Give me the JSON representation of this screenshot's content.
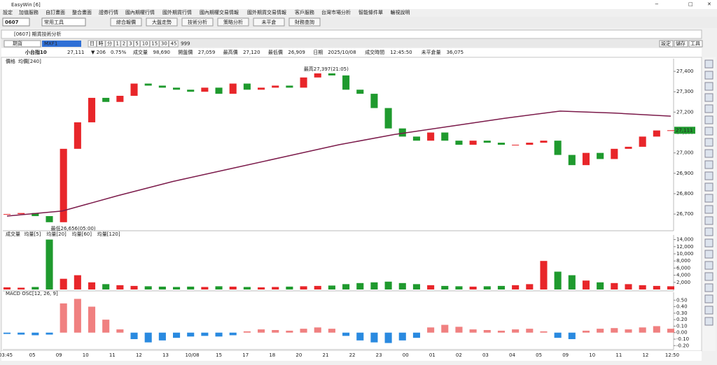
{
  "window": {
    "title": "EasyWin [6]"
  },
  "menu": [
    "設定",
    "加值服務",
    "自訂畫面",
    "整合畫面",
    "證券行情",
    "國內期權行情",
    "國外期貨行情",
    "國內期權交易情報",
    "國外期貨交易情報",
    "客戶服務",
    "台灣市場分析",
    "智能條件單",
    "輪視說明"
  ],
  "toolbar": {
    "code": "0607",
    "tool_select": "常用工具",
    "buttons": [
      "綜合報價",
      "大盤走勢",
      "技術分析",
      "策略分析",
      "未平倉",
      "財務查詢"
    ]
  },
  "panel": {
    "title": "[0607] 期貨技術分析",
    "market": "期貨",
    "symbol": "MXF1",
    "periods": [
      "日",
      "時",
      "分",
      "1",
      "2",
      "3",
      "5",
      "10",
      "15",
      "30",
      "45"
    ],
    "count": "999",
    "actions": [
      "設定",
      "儲存",
      "工具"
    ]
  },
  "quote": {
    "name": "小台指10",
    "price": "27,111",
    "change": "▼ 206",
    "percent": "0.75%",
    "fields": [
      {
        "label": "成交量",
        "value": "98,690"
      },
      {
        "label": "開盤價",
        "value": "27,059"
      },
      {
        "label": "最高價",
        "value": "27,120"
      },
      {
        "label": "最低價",
        "value": "26,909"
      },
      {
        "label": "日期",
        "value": "2025/10/08"
      },
      {
        "label": "成交時間",
        "value": "12:45:50"
      },
      {
        "label": "未平倉量",
        "value": "36,075"
      }
    ]
  },
  "price_chart": {
    "type": "candlestick",
    "label": "價格",
    "closes": [
      26700,
      26705,
      26690,
      26660,
      27020,
      27150,
      27270,
      27250,
      27280,
      27340,
      27330,
      27320,
      27310,
      27300,
      27320,
      27290,
      27340,
      27310,
      27320,
      27330,
      27320,
      27370,
      27390,
      27380,
      27310,
      27290,
      27220,
      27120,
      27080,
      27060,
      27100,
      27060,
      27040,
      27060,
      27050,
      27040,
      27040,
      27050,
      27060,
      26990,
      26940,
      27000,
      26970,
      27020,
      27030,
      27080,
      27110,
      27111
    ],
    "up_color": "#e8262a",
    "down_color": "#1f9a2e",
    "ma": {
      "name": "均價[240]",
      "color": "#7b1a4a",
      "values": [
        26690,
        26715,
        26790,
        26860,
        26920,
        26980,
        27040,
        27090,
        27130,
        27170,
        27205,
        27195,
        27180
      ]
    },
    "ylim": [
      26625,
      27455
    ],
    "yticks": [
      {
        "value": 26700,
        "label": "26,700"
      },
      {
        "value": 26800,
        "label": "26,800"
      },
      {
        "value": 26900,
        "label": "26,900"
      },
      {
        "value": 27000,
        "label": "27,000"
      },
      {
        "value": 27100,
        "label": "27,100"
      },
      {
        "value": 27200,
        "label": "27,200"
      },
      {
        "value": 27300,
        "label": "27,300"
      },
      {
        "value": 27400,
        "label": "27,400"
      }
    ],
    "high_annotation": "最高27,397(21:05)",
    "low_annotation": "最低26,656(05:00)",
    "last_label": "27,111"
  },
  "volume_chart": {
    "type": "bar",
    "legend": [
      {
        "name": "成交量",
        "color": "#1f9a2e"
      },
      {
        "name": "均量[5]",
        "color": "#1f9a2e"
      },
      {
        "name": "均量[20]",
        "color": "#2a6fd6"
      },
      {
        "name": "均量[60]",
        "color": "#1f9a2e"
      },
      {
        "name": "均量[120]",
        "color": "#7b1a4a"
      }
    ],
    "values": [
      600,
      500,
      700,
      14000,
      3000,
      4000,
      2000,
      1500,
      1200,
      1000,
      900,
      800,
      700,
      800,
      700,
      900,
      800,
      700,
      600,
      700,
      800,
      900,
      1000,
      1100,
      1500,
      1800,
      2000,
      2200,
      1800,
      1500,
      1200,
      1000,
      900,
      800,
      900,
      1000,
      1200,
      1500,
      8000,
      5000,
      4000,
      2500,
      2000,
      1800,
      1500,
      1200,
      1000,
      900
    ],
    "ylim": [
      0,
      14900
    ],
    "yticks": [
      {
        "value": 2000,
        "label": "2,000"
      },
      {
        "value": 4000,
        "label": "4,000"
      },
      {
        "value": 6000,
        "label": "6,000"
      },
      {
        "value": 8000,
        "label": "8,000"
      },
      {
        "value": 10000,
        "label": "10,000"
      },
      {
        "value": 12000,
        "label": "12,000"
      },
      {
        "value": 14000,
        "label": "14,000"
      }
    ]
  },
  "macd_chart": {
    "type": "bar",
    "label": "MACD OSC[12, 26, 9]",
    "pos_color": "#f08080",
    "neg_color": "#2a8ae0",
    "values": [
      -0.02,
      -0.03,
      -0.04,
      -0.03,
      0.45,
      0.52,
      0.4,
      0.2,
      0.05,
      -0.1,
      -0.15,
      -0.12,
      -0.08,
      -0.06,
      -0.05,
      -0.06,
      -0.04,
      0.02,
      0.05,
      0.04,
      0.03,
      0.06,
      0.08,
      0.06,
      -0.05,
      -0.12,
      -0.15,
      -0.16,
      -0.12,
      -0.08,
      0.08,
      0.12,
      0.09,
      0.05,
      0.04,
      0.03,
      0.05,
      0.06,
      0.02,
      -0.08,
      -0.1,
      0.03,
      0.06,
      0.07,
      0.05,
      0.08,
      0.1,
      0.06
    ],
    "ylim": [
      -0.24,
      0.6
    ],
    "yticks": [
      {
        "value": 0.5,
        "label": "0.50"
      },
      {
        "value": 0.4,
        "label": "0.40"
      },
      {
        "value": 0.3,
        "label": "0.30"
      },
      {
        "value": 0.2,
        "label": "0.20"
      },
      {
        "value": 0.1,
        "label": "0.10"
      },
      {
        "value": 0,
        "label": "0.00"
      },
      {
        "value": -0.1,
        "label": "-0.10"
      },
      {
        "value": -0.2,
        "label": "-0.20"
      }
    ]
  },
  "x_axis": {
    "labels": [
      "03:45",
      "05",
      "09",
      "10",
      "11",
      "12",
      "13",
      "10/08",
      "15",
      "17",
      "18",
      "20",
      "21",
      "22",
      "23",
      "00",
      "01",
      "02",
      "03",
      "04",
      "05",
      "09",
      "10",
      "11",
      "12",
      "12:50"
    ]
  }
}
